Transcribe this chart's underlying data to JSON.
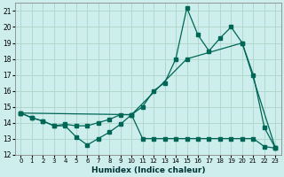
{
  "xlabel": "Humidex (Indice chaleur)",
  "background_color": "#cdeeed",
  "grid_color": "#b0d8cc",
  "line_color": "#006655",
  "xlim": [
    -0.5,
    23.5
  ],
  "ylim": [
    12,
    21.5
  ],
  "yticks": [
    12,
    13,
    14,
    15,
    16,
    17,
    18,
    19,
    20,
    21
  ],
  "xticks": [
    0,
    1,
    2,
    3,
    4,
    5,
    6,
    7,
    8,
    9,
    10,
    11,
    12,
    13,
    14,
    15,
    16,
    17,
    18,
    19,
    20,
    21,
    22,
    23
  ],
  "series1_x": [
    0,
    1,
    2,
    3,
    4,
    5,
    6,
    7,
    8,
    9,
    10,
    11,
    12,
    13,
    14,
    15,
    16,
    17,
    18,
    19,
    20,
    21,
    22,
    23
  ],
  "series1_y": [
    14.6,
    14.3,
    14.1,
    13.8,
    13.9,
    13.8,
    13.8,
    14.0,
    14.2,
    14.5,
    14.5,
    15.0,
    16.0,
    16.5,
    18.0,
    21.2,
    19.5,
    18.5,
    19.3,
    20.0,
    19.0,
    17.0,
    13.7,
    12.4
  ],
  "series2_x": [
    0,
    1,
    2,
    3,
    4,
    5,
    6,
    7,
    8,
    9,
    10,
    11,
    12,
    13,
    14,
    15,
    16,
    17,
    18,
    19,
    20,
    21,
    22,
    23
  ],
  "series2_y": [
    14.6,
    14.3,
    14.1,
    13.8,
    13.8,
    13.1,
    12.6,
    13.0,
    13.4,
    13.9,
    14.5,
    13.0,
    13.0,
    13.0,
    13.0,
    13.0,
    13.0,
    13.0,
    13.0,
    13.0,
    13.0,
    13.0,
    12.5,
    12.4
  ],
  "series3_x": [
    0,
    10,
    15,
    20,
    23
  ],
  "series3_y": [
    14.6,
    14.5,
    18.0,
    19.0,
    12.4
  ]
}
